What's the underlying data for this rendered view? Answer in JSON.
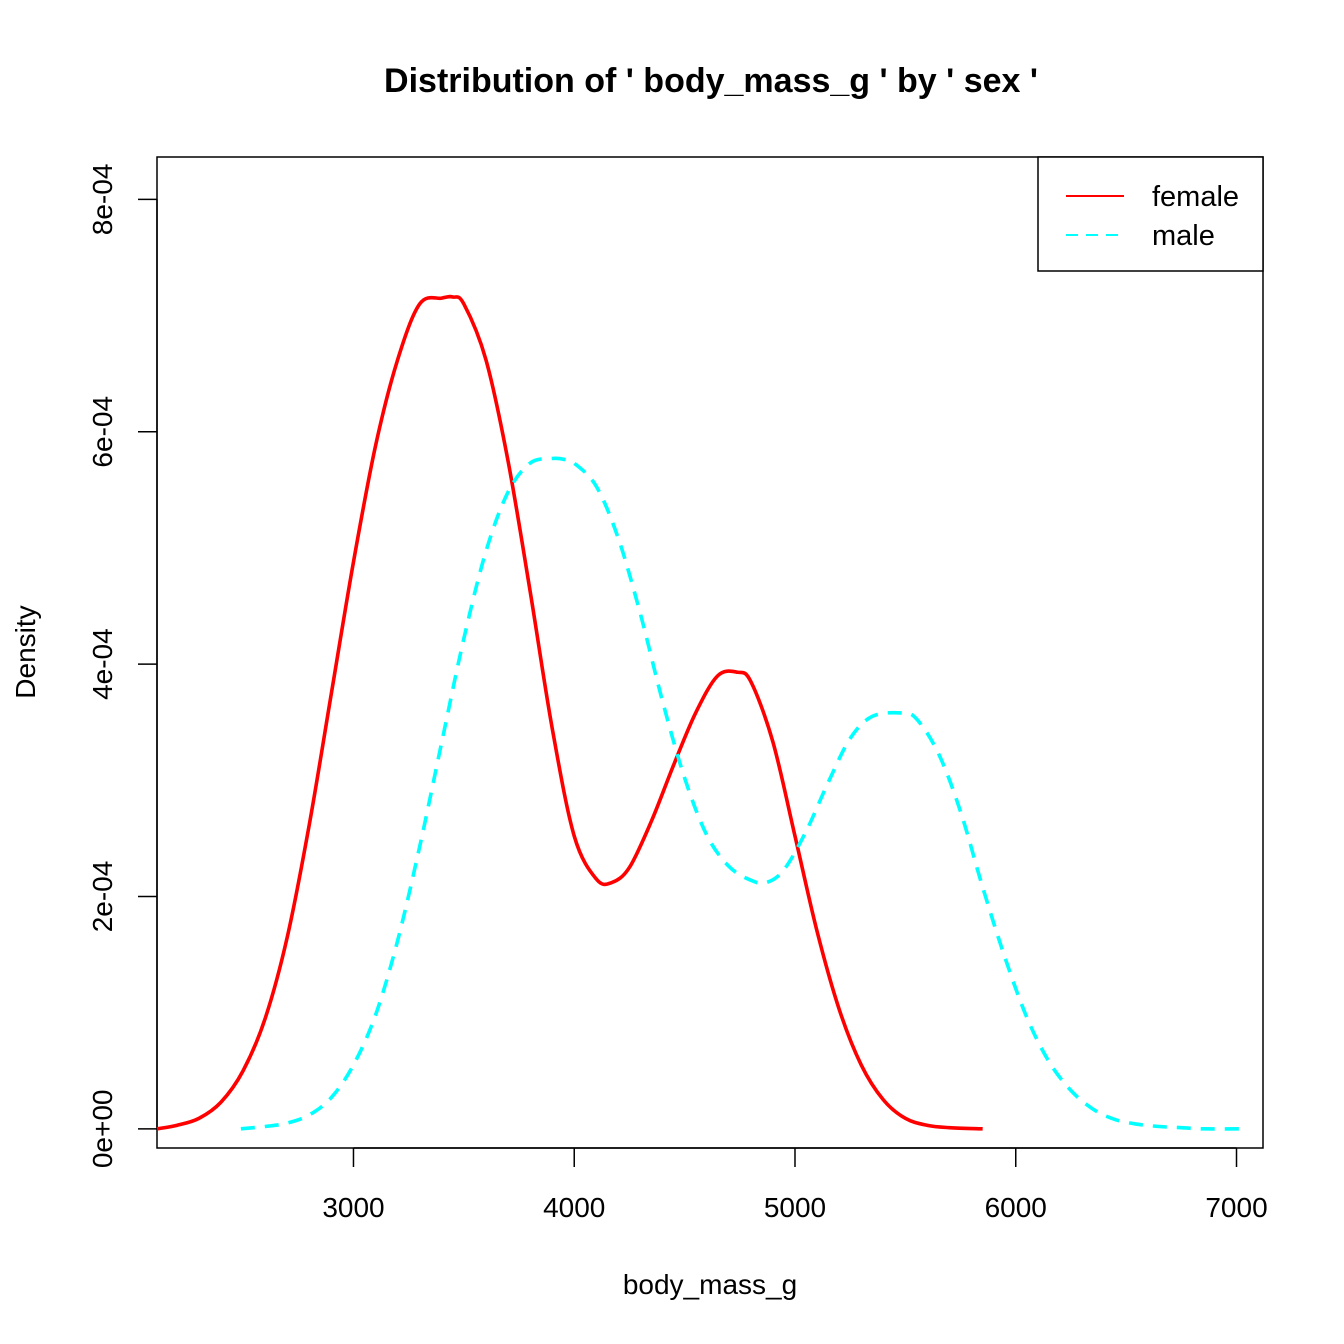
{
  "chart_data": {
    "type": "line",
    "title": "Distribution of ' body_mass_g ' by ' sex '",
    "xlabel": "body_mass_g",
    "ylabel": "Density",
    "xlim": [
      2110,
      7120
    ],
    "ylim": [
      -1.65e-05,
      0.0008365
    ],
    "x_ticks": [
      3000,
      4000,
      5000,
      6000,
      7000
    ],
    "x_tick_labels": [
      "3000",
      "4000",
      "5000",
      "6000",
      "7000"
    ],
    "y_ticks": [
      0,
      0.0002,
      0.0004,
      0.0006,
      0.0008
    ],
    "y_tick_labels": [
      "0e+00",
      "2e-04",
      "4e-04",
      "6e-04",
      "8e-04"
    ],
    "grid": false,
    "legend_position": "top-right",
    "series": [
      {
        "name": "female",
        "color": "#ff0000",
        "line_style": "solid",
        "x": [
          2110,
          2200,
          2300,
          2400,
          2500,
          2600,
          2700,
          2800,
          2900,
          3000,
          3100,
          3200,
          3300,
          3400,
          3450,
          3500,
          3600,
          3700,
          3800,
          3900,
          4000,
          4100,
          4170,
          4250,
          4350,
          4450,
          4550,
          4650,
          4740,
          4800,
          4900,
          5000,
          5100,
          5200,
          5300,
          5400,
          5500,
          5600,
          5700,
          5850
        ],
        "y": [
          0.0,
          3e-06,
          9e-06,
          2.3e-05,
          5e-05,
          9.5e-05,
          0.000165,
          0.000262,
          0.000375,
          0.000488,
          0.000588,
          0.000662,
          0.00071,
          0.000715,
          0.000716,
          0.00071,
          0.000662,
          0.000575,
          0.000463,
          0.000345,
          0.000252,
          0.000215,
          0.000212,
          0.000225,
          0.000265,
          0.000313,
          0.000358,
          0.00039,
          0.000393,
          0.000385,
          0.000333,
          0.000252,
          0.00017,
          0.000103,
          5.5e-05,
          2.5e-05,
          9e-06,
          3e-06,
          1e-06,
          0.0
        ]
      },
      {
        "name": "male",
        "color": "#00ffff",
        "line_style": "dashed",
        "x": [
          2490,
          2600,
          2700,
          2800,
          2900,
          3000,
          3100,
          3200,
          3300,
          3400,
          3500,
          3600,
          3700,
          3800,
          3900,
          3960,
          4000,
          4100,
          4200,
          4300,
          4400,
          4500,
          4600,
          4700,
          4800,
          4870,
          4950,
          5050,
          5150,
          5250,
          5350,
          5480,
          5550,
          5650,
          5750,
          5850,
          5950,
          6050,
          6150,
          6250,
          6350,
          6450,
          6550,
          6650,
          6750,
          6850,
          7030
        ],
        "y": [
          0.0,
          2e-06,
          5e-06,
          1.2e-05,
          2.7e-05,
          5.5e-05,
          9.8e-05,
          0.000162,
          0.000243,
          0.000333,
          0.000422,
          0.000497,
          0.000548,
          0.000573,
          0.000577,
          0.000576,
          0.000573,
          0.000553,
          0.000508,
          0.000443,
          0.000368,
          0.000302,
          0.000253,
          0.000226,
          0.000214,
          0.000212,
          0.000223,
          0.000256,
          0.000298,
          0.000336,
          0.000355,
          0.000358,
          0.000353,
          0.000323,
          0.000273,
          0.000208,
          0.000148,
          9.6e-05,
          5.8e-05,
          3.3e-05,
          1.7e-05,
          8e-06,
          4e-06,
          2e-06,
          1e-06,
          0.0,
          0.0
        ]
      }
    ]
  }
}
